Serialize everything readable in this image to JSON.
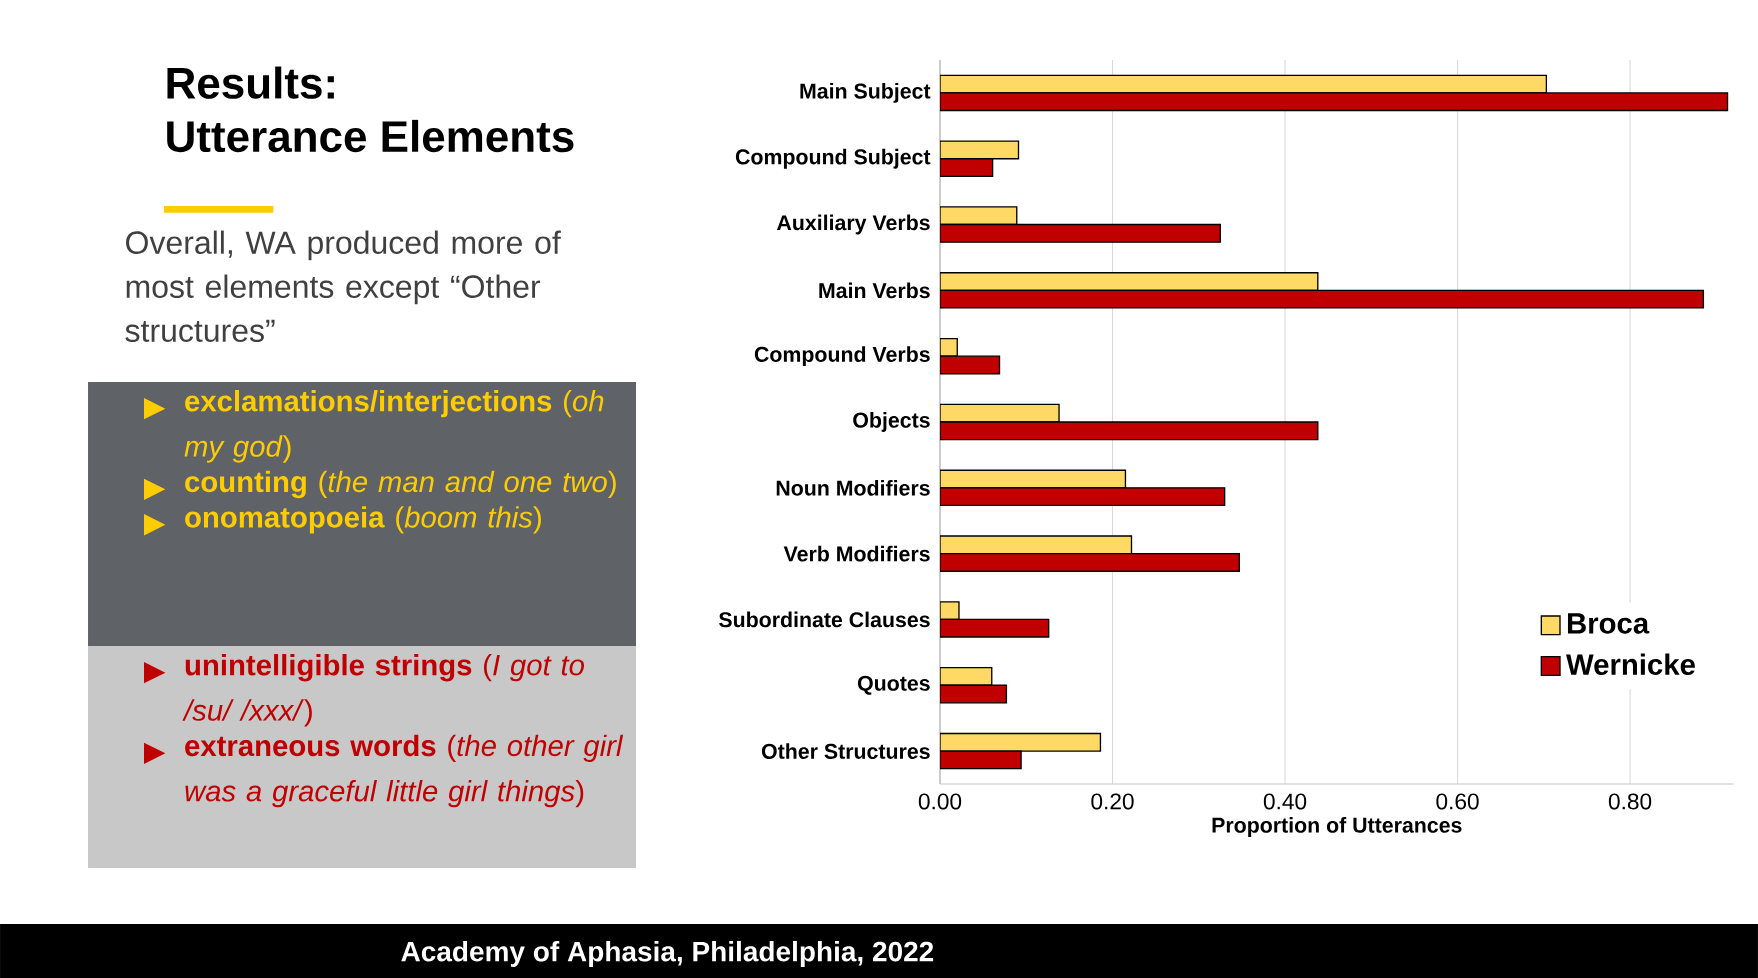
{
  "chart_data": {
    "type": "bar",
    "orientation": "horizontal",
    "title": "Results: Utterance Elements",
    "categories": [
      "Main Subject",
      "Compound Subject",
      "Auxiliary Verbs",
      "Main Verbs",
      "Compound Verbs",
      "Objects",
      "Noun Modifiers",
      "Verb Modifiers",
      "Subordinate Clauses",
      "Quotes",
      "Other Structures"
    ],
    "series": [
      {
        "name": "Broca",
        "color": "#ffd966",
        "values": [
          0.703,
          0.091,
          0.089,
          0.438,
          0.02,
          0.138,
          0.215,
          0.222,
          0.022,
          0.06,
          0.186
        ]
      },
      {
        "name": "Wernicke",
        "color": "#c00000",
        "values": [
          0.913,
          0.061,
          0.325,
          0.885,
          0.069,
          0.438,
          0.33,
          0.347,
          0.126,
          0.077,
          0.094
        ]
      }
    ],
    "xlabel": "Proportion of Utterances",
    "xlim": [
      0,
      0.92
    ],
    "xticks": [
      {
        "value": 0,
        "label": "0.00"
      },
      {
        "value": 0.2,
        "label": "0.20"
      },
      {
        "value": 0.4,
        "label": "0.40"
      },
      {
        "value": 0.6,
        "label": "0.60"
      },
      {
        "value": 0.8,
        "label": "0.80"
      }
    ],
    "grid": "x",
    "legend": "bottom right",
    "annotations": [
      "Overall, WA produced more of most elements except “Other structures”",
      "**exclamations/interjections** (*oh my god*)",
      "**counting** (*the man and one two*)",
      "**onomatopoeia** (*boom this*)",
      "**unintelligible strings** (*I got to /su/ /xxx/*)",
      "**extraneous words** (*the other girl was a graceful little girl things*)",
      "Academy of Aphasia, Philadelphia, 2022"
    ]
  }
}
